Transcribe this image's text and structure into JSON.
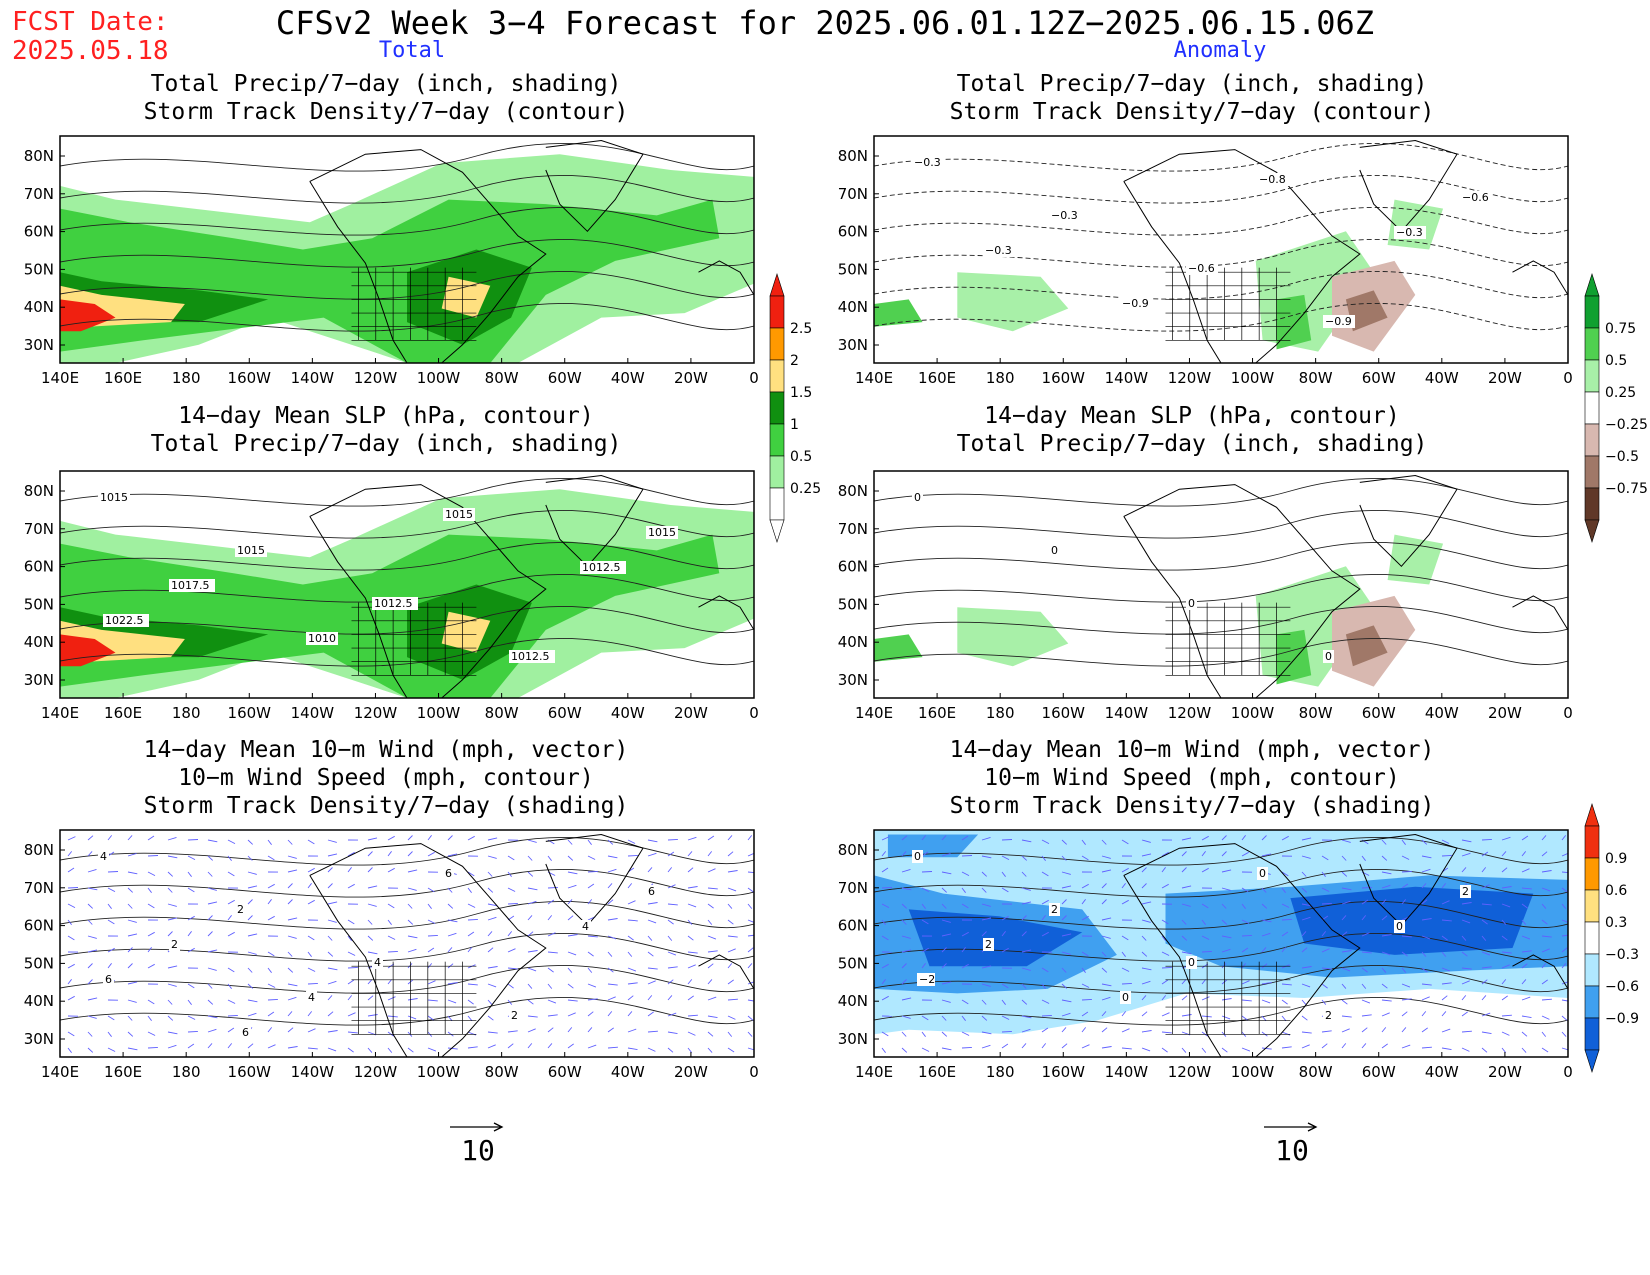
{
  "fcst_date": {
    "label": "FCST Date:",
    "date": "2025.05.18"
  },
  "title": "CFSv2 Week 3−4 Forecast for 2025.06.01.12Z−2025.06.15.06Z",
  "columns": [
    "Total",
    "Anomaly"
  ],
  "axes": {
    "lon_labels": [
      "140E",
      "160E",
      "180",
      "160W",
      "140W",
      "120W",
      "100W",
      "80W",
      "60W",
      "40W",
      "20W",
      "0"
    ],
    "lat_labels": [
      "80N",
      "70N",
      "60N",
      "50N",
      "40N",
      "30N"
    ]
  },
  "panels": [
    {
      "id": "total-precip-storm",
      "col": 0,
      "row": 0,
      "titles": [
        "Total Precip/7−day (inch, shading)",
        "Storm Track Density/7−day (contour)"
      ],
      "contour_labels": []
    },
    {
      "id": "anom-precip-storm",
      "col": 1,
      "row": 0,
      "titles": [
        "Total Precip/7−day (inch, shading)",
        "Storm Track Density/7−day (contour)"
      ],
      "contour_labels": [
        "−0.3",
        "−0.3",
        "−0.6",
        "−0.9",
        "−0.6",
        "−0.3",
        "−0.9",
        "−0.8",
        "−0.3"
      ]
    },
    {
      "id": "total-slp-precip",
      "col": 0,
      "row": 1,
      "titles": [
        "14−day Mean SLP (hPa, contour)",
        "Total Precip/7−day (inch, shading)"
      ],
      "contour_labels": [
        "1015",
        "1015",
        "1012.5",
        "1012.5",
        "1015",
        "1017.5",
        "1010",
        "1015",
        "1012.5",
        "1022.5"
      ]
    },
    {
      "id": "anom-slp-precip",
      "col": 1,
      "row": 1,
      "titles": [
        "14−day Mean SLP (hPa, contour)",
        "Total Precip/7−day (inch, shading)"
      ],
      "contour_labels": [
        "0",
        "0",
        "0",
        "0"
      ]
    },
    {
      "id": "total-wind",
      "col": 0,
      "row": 2,
      "titles": [
        "14−day Mean 10−m Wind (mph, vector)",
        "10−m Wind Speed (mph, contour)",
        "Storm Track Density/7−day (shading)"
      ],
      "contour_labels": [
        "4",
        "2",
        "4",
        "2",
        "6",
        "2",
        "4",
        "6",
        "4",
        "6",
        "6"
      ]
    },
    {
      "id": "anom-wind",
      "col": 1,
      "row": 2,
      "titles": [
        "14−day Mean 10−m Wind (mph, vector)",
        "10−m Wind Speed (mph, contour)",
        "Storm Track Density/7−day (shading)"
      ],
      "contour_labels": [
        "0",
        "2",
        "0",
        "2",
        "2",
        "2",
        "0",
        "0",
        "0",
        "−2"
      ]
    }
  ],
  "colorbars": [
    {
      "id": "precip-total",
      "labels": [
        "2.5",
        "2",
        "1.5",
        "1",
        "0.5",
        "0.25"
      ],
      "colors": [
        "#f02010",
        "#ff9900",
        "#ffe080",
        "#109010",
        "#40d040",
        "#a0f0a0",
        "#ffffff"
      ]
    },
    {
      "id": "precip-anom",
      "labels": [
        "0.75",
        "0.5",
        "0.25",
        "−0.25",
        "−0.5",
        "−0.75"
      ],
      "colors": [
        "#10a030",
        "#50d050",
        "#a8f0a8",
        "#ffffff",
        "#d8b8b0",
        "#a07868",
        "#603828"
      ]
    },
    {
      "id": "storm-anom",
      "labels": [
        "0.9",
        "0.6",
        "0.3",
        "−0.3",
        "−0.6",
        "−0.9"
      ],
      "colors": [
        "#f03010",
        "#ff9900",
        "#ffe080",
        "#ffffff",
        "#b0e8ff",
        "#40a0f0",
        "#1060d8"
      ]
    }
  ],
  "vector_scale": [
    {
      "value": "10"
    },
    {
      "value": "10"
    }
  ],
  "colors": {
    "fcst": "#ff2020",
    "column_head": "#2030ff",
    "vector": "#6060ff"
  }
}
